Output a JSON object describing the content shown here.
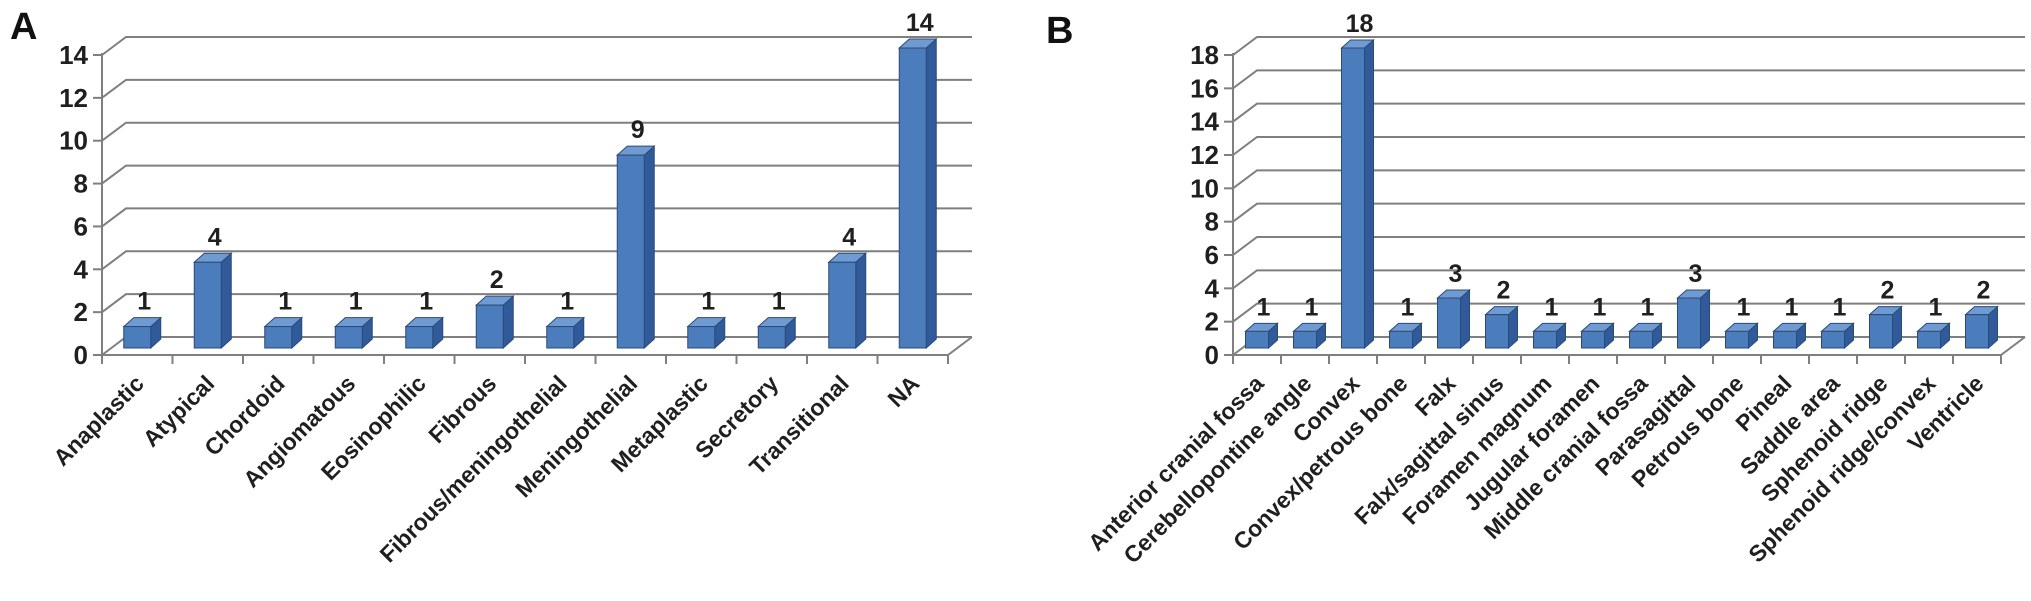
{
  "figure": {
    "panels": [
      {
        "label": "A"
      },
      {
        "label": "B"
      }
    ]
  },
  "colors": {
    "bar_front": "#4b7dbd",
    "bar_side": "#305a9a",
    "bar_top": "#6f9bd2",
    "bar_edge": "#2c4a77",
    "grid": "#7f7f7f",
    "axis": "#7f7f7f",
    "text": "#1f1f1f"
  },
  "chart_data": [
    {
      "panel": "A",
      "type": "bar",
      "title": "",
      "xlabel": "",
      "ylabel": "",
      "categories": [
        "Anaplastic",
        "Atypical",
        "Chordoid",
        "Angiomatous",
        "Eosinophilic",
        "Fibrous",
        "Fibrous/meningothelial",
        "Meningothelial",
        "Metaplastic",
        "Secretory",
        "Transitional",
        "NA"
      ],
      "values": [
        1,
        4,
        1,
        1,
        1,
        2,
        1,
        9,
        1,
        1,
        4,
        14
      ],
      "ylim": [
        0,
        14
      ],
      "ytick_step": 2,
      "yticks": [
        0,
        2,
        4,
        6,
        8,
        10,
        12,
        14
      ],
      "grid": true,
      "legend": false,
      "style": "3d-column",
      "data_labels": true
    },
    {
      "panel": "B",
      "type": "bar",
      "title": "",
      "xlabel": "",
      "ylabel": "",
      "categories": [
        "Anterior cranial fossa",
        "Cerebellopontine angle",
        "Convex",
        "Convex/petrous bone",
        "Falx",
        "Falx/sagittal sinus",
        "Foramen magnum",
        "Jugular foramen",
        "Middle cranial fossa",
        "Parasagittal",
        "Petrous bone",
        "Pineal",
        "Saddle area",
        "Sphenoid ridge",
        "Sphenoid ridge/convex",
        "Ventricle"
      ],
      "values": [
        1,
        1,
        18,
        1,
        3,
        2,
        1,
        1,
        1,
        3,
        1,
        1,
        1,
        2,
        1,
        2
      ],
      "ylim": [
        0,
        18
      ],
      "ytick_step": 2,
      "yticks": [
        0,
        2,
        4,
        6,
        8,
        10,
        12,
        14,
        16,
        18
      ],
      "grid": true,
      "legend": false,
      "style": "3d-column",
      "data_labels": true
    }
  ]
}
